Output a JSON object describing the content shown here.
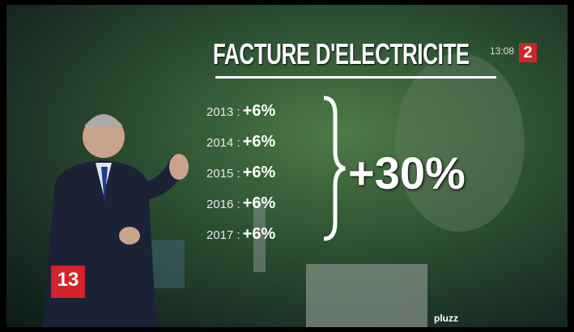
{
  "screen": {
    "title": "FACTURE D'ELECTRICITE",
    "clock": "13:08",
    "channel": "2",
    "rows": [
      {
        "year": "2013 :",
        "change": "+6%"
      },
      {
        "year": "2014 :",
        "change": "+6%"
      },
      {
        "year": "2015 :",
        "change": "+6%"
      },
      {
        "year": "2016 :",
        "change": "+6%"
      },
      {
        "year": "2017 :",
        "change": "+6%"
      }
    ],
    "total": "+30%",
    "news_logo": "13",
    "watermark": "pluzz"
  }
}
